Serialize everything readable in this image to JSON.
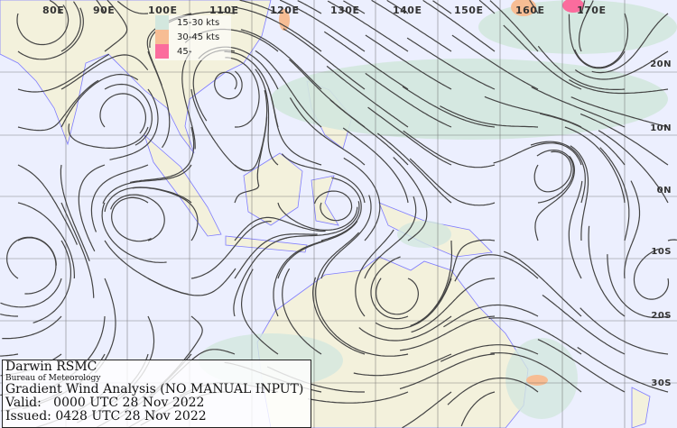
{
  "map": {
    "longitude_labels": [
      "80E",
      "90E",
      "100E",
      "110E",
      "120E",
      "130E",
      "140E",
      "150E",
      "160E",
      "170E"
    ],
    "latitude_labels": [
      "20N",
      "10N",
      "0N",
      "10S",
      "20S",
      "30S"
    ],
    "colors": {
      "ocean": "#eceffe",
      "land": "#f3f1dc",
      "coast": "#7f7cff",
      "streamline": "#444444",
      "grid": "#555555"
    }
  },
  "legend": {
    "items": [
      {
        "label": "15-30 kts",
        "color": "#d3e7de"
      },
      {
        "label": "30-45 kts",
        "color": "#f7bd94"
      },
      {
        "label": "45-",
        "color": "#fb6c9d"
      }
    ]
  },
  "info": {
    "centre": "Darwin RSMC",
    "agency": "Bureau of Meteorology",
    "product": "Gradient Wind Analysis (NO MANUAL INPUT)",
    "valid": "Valid:   0000 UTC 28 Nov 2022",
    "issued": "Issued: 0428 UTC 28 Nov 2022"
  }
}
